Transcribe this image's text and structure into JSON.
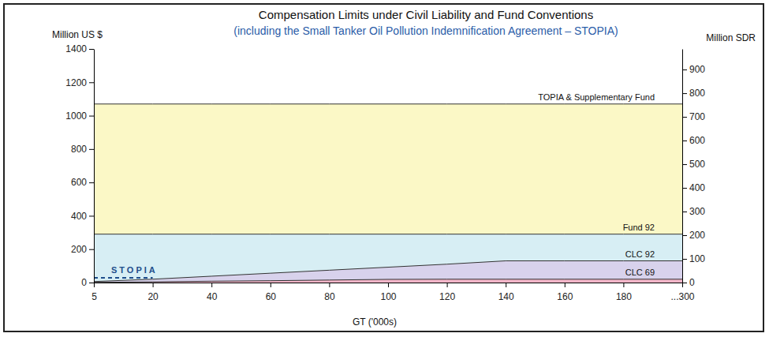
{
  "chart_data": {
    "type": "area",
    "title": "Compensation Limits under Civil Liability and Fund Conventions",
    "subtitle": "(including the Small Tanker Oil Pollution Indemnification Agreement – STOPIA)",
    "x_label": "GT ('000s)",
    "y_label": "Million US $",
    "y2_label": "Million SDR",
    "categories": [
      "5",
      "20",
      "40",
      "60",
      "80",
      "100",
      "120",
      "140",
      "160",
      "180",
      "...300"
    ],
    "series": [
      {
        "name": "TOPIA & Supplementary Fund",
        "type": "area",
        "color": "#fbf8c6",
        "values": [
          1070,
          1070,
          1070,
          1070,
          1070,
          1070,
          1070,
          1070,
          1070,
          1070,
          1070
        ]
      },
      {
        "name": "Fund 92",
        "type": "area",
        "color": "#d7eef4",
        "values": [
          290,
          290,
          290,
          290,
          290,
          290,
          290,
          290,
          290,
          290,
          290
        ]
      },
      {
        "name": "CLC 92",
        "type": "area",
        "color": "#d8d2ec",
        "values": [
          6,
          20,
          38,
          56,
          74,
          92,
          110,
          130,
          130,
          130,
          130
        ]
      },
      {
        "name": "CLC 69",
        "type": "area",
        "color": "#f2b5c8",
        "values": [
          1,
          4,
          8,
          11,
          15,
          19,
          20,
          20,
          20,
          20,
          20
        ]
      },
      {
        "name": "STOPIA",
        "type": "line",
        "line_style": "dashed",
        "color": "#1f4e8c",
        "values": [
          28,
          28,
          null,
          null,
          null,
          null,
          null,
          null,
          null,
          null,
          null
        ]
      }
    ],
    "ylim": [
      0,
      1400
    ],
    "yticks": [
      0,
      200,
      400,
      600,
      800,
      1000,
      1200,
      1400
    ],
    "y2lim": [
      0,
      987
    ],
    "y2ticks": [
      0,
      100,
      200,
      300,
      400,
      500,
      600,
      700,
      800,
      900
    ]
  }
}
